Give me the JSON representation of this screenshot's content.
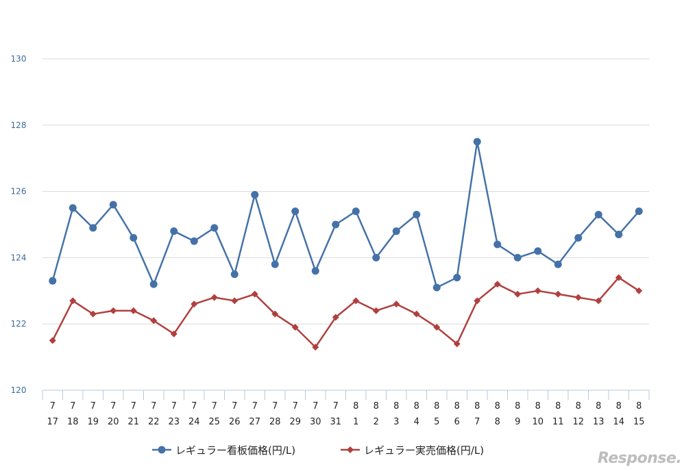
{
  "chart_data": {
    "type": "line",
    "categories": [
      [
        "7",
        "17"
      ],
      [
        "7",
        "18"
      ],
      [
        "7",
        "19"
      ],
      [
        "7",
        "20"
      ],
      [
        "7",
        "21"
      ],
      [
        "7",
        "22"
      ],
      [
        "7",
        "23"
      ],
      [
        "7",
        "24"
      ],
      [
        "7",
        "25"
      ],
      [
        "7",
        "26"
      ],
      [
        "7",
        "27"
      ],
      [
        "7",
        "28"
      ],
      [
        "7",
        "29"
      ],
      [
        "7",
        "30"
      ],
      [
        "7",
        "31"
      ],
      [
        "8",
        "1"
      ],
      [
        "8",
        "2"
      ],
      [
        "8",
        "3"
      ],
      [
        "8",
        "4"
      ],
      [
        "8",
        "5"
      ],
      [
        "8",
        "6"
      ],
      [
        "8",
        "7"
      ],
      [
        "8",
        "8"
      ],
      [
        "8",
        "9"
      ],
      [
        "8",
        "10"
      ],
      [
        "8",
        "11"
      ],
      [
        "8",
        "12"
      ],
      [
        "8",
        "13"
      ],
      [
        "8",
        "14"
      ],
      [
        "8",
        "15"
      ]
    ],
    "series": [
      {
        "name": "レギュラー看板価格(円/L)",
        "color": "#4472a8",
        "marker": "circle",
        "values": [
          123.3,
          125.5,
          124.9,
          125.6,
          124.6,
          123.2,
          124.8,
          124.5,
          124.9,
          123.5,
          125.9,
          123.8,
          125.4,
          123.6,
          125.0,
          125.4,
          124.0,
          124.8,
          125.3,
          123.1,
          123.4,
          127.5,
          124.4,
          124.0,
          124.2,
          123.8,
          124.6,
          125.3,
          124.7,
          125.4
        ]
      },
      {
        "name": "レギュラー実売価格(円/L)",
        "color": "#b0403f",
        "marker": "diamond",
        "values": [
          121.5,
          122.7,
          122.3,
          122.4,
          122.4,
          122.1,
          121.7,
          122.6,
          122.8,
          122.7,
          122.9,
          122.3,
          121.9,
          121.3,
          122.2,
          122.7,
          122.4,
          122.6,
          122.3,
          121.9,
          121.4,
          122.7,
          123.2,
          122.9,
          123.0,
          122.9,
          122.8,
          122.7,
          123.4,
          123.0
        ]
      }
    ],
    "ylim": [
      120,
      130
    ],
    "yticks": [
      "120",
      "122",
      "124",
      "126",
      "128",
      "130"
    ],
    "grid": true,
    "legend_position": "bottom"
  },
  "watermark": "Response."
}
